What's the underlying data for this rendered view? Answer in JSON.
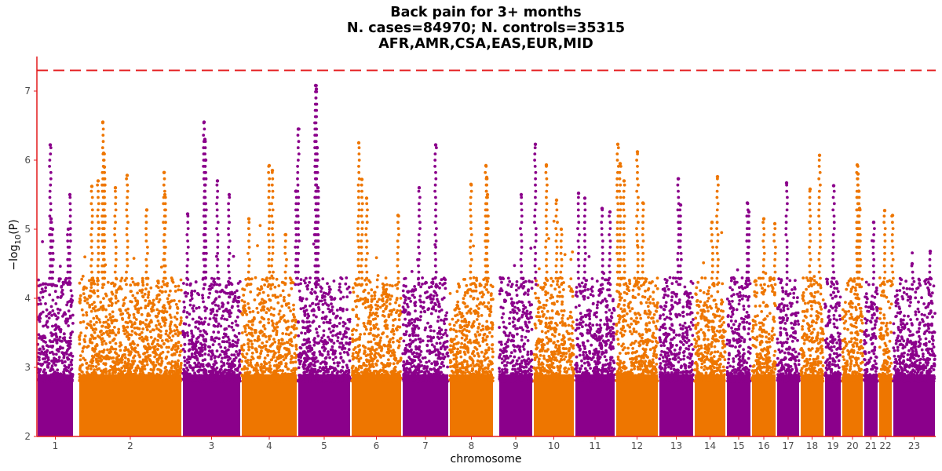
{
  "chart_data": {
    "type": "scatter",
    "subtype": "manhattan",
    "title": [
      "Back pain for 3+ months",
      "N. cases=84970; N. controls=35315",
      "AFR,AMR,CSA,EAS,EUR,MID"
    ],
    "xlabel": "chromosome",
    "ylabel": {
      "prefix": "−log",
      "sub": "10",
      "arg": "(P)"
    },
    "ylim": [
      2,
      7.5
    ],
    "yticks": [
      2,
      3,
      4,
      5,
      6,
      7
    ],
    "threshold": 7.3,
    "colors": {
      "odd": "#8B008B",
      "even": "#EE7600",
      "threshold": "#E41A1C",
      "axis": "#E41A1C"
    },
    "chromosomes": [
      {
        "label": "1",
        "span": [
          0.0,
          47.0
        ],
        "peak": 6.22,
        "top": [
          [
            17,
            6.22
          ],
          [
            18,
            5.15
          ],
          [
            20,
            5.0
          ],
          [
            40,
            5.0
          ],
          [
            42,
            5.5
          ]
        ]
      },
      {
        "label": "2",
        "span": [
          53.0,
          185.0
        ],
        "peak": 6.55,
        "top": [
          [
            70,
            5.62
          ],
          [
            78,
            5.7
          ],
          [
            84,
            6.55
          ],
          [
            85,
            6.1
          ],
          [
            86,
            5.9
          ],
          [
            100,
            5.6
          ],
          [
            115,
            5.78
          ],
          [
            140,
            5.28
          ],
          [
            162,
            5.82
          ],
          [
            163,
            5.5
          ]
        ]
      },
      {
        "label": "3",
        "span": [
          185.0,
          260.0
        ],
        "peak": 6.55,
        "top": [
          [
            192,
            5.22
          ],
          [
            213,
            6.55
          ],
          [
            214,
            6.3
          ],
          [
            215,
            6.0
          ],
          [
            230,
            5.7
          ],
          [
            245,
            5.5
          ]
        ]
      },
      {
        "label": "4",
        "span": [
          260.0,
          332.0
        ],
        "peak": 5.92,
        "top": [
          [
            270,
            5.15
          ],
          [
            296,
            5.92
          ],
          [
            300,
            5.85
          ],
          [
            317,
            4.92
          ]
        ]
      },
      {
        "label": "5",
        "span": [
          332.0,
          400.0
        ],
        "peak": 7.08,
        "top": [
          [
            333,
            6.45
          ],
          [
            330,
            5.55
          ],
          [
            355,
            7.08
          ],
          [
            356,
            7.03
          ],
          [
            357,
            6.18
          ],
          [
            358,
            5.6
          ]
        ]
      },
      {
        "label": "6",
        "span": [
          400.0,
          465.0
        ],
        "peak": 6.25,
        "top": [
          [
            410,
            6.25
          ],
          [
            414,
            5.72
          ],
          [
            420,
            5.45
          ],
          [
            460,
            5.2
          ]
        ]
      },
      {
        "label": "7",
        "span": [
          465.0,
          525.0
        ],
        "peak": 6.22,
        "top": [
          [
            487,
            5.6
          ],
          [
            508,
            6.22
          ]
        ]
      },
      {
        "label": "8",
        "span": [
          525.0,
          582.0
        ],
        "peak": 5.92,
        "top": [
          [
            553,
            5.65
          ],
          [
            572,
            5.92
          ],
          [
            573,
            5.75
          ],
          [
            574,
            5.5
          ]
        ]
      },
      {
        "label": "9",
        "span": [
          588.0,
          632.0
        ],
        "peak": 6.23,
        "top": [
          [
            617,
            5.5
          ],
          [
            635,
            6.23
          ]
        ]
      },
      {
        "label": "10",
        "span": [
          632.0,
          685.0
        ],
        "peak": 5.93,
        "top": [
          [
            649,
            5.93
          ],
          [
            662,
            5.42
          ],
          [
            668,
            5.0
          ]
        ]
      },
      {
        "label": "11",
        "span": [
          685.0,
          737.0
        ],
        "peak": 5.52,
        "top": [
          [
            690,
            5.52
          ],
          [
            698,
            5.45
          ],
          [
            720,
            5.3
          ],
          [
            730,
            5.25
          ]
        ]
      },
      {
        "label": "12",
        "span": [
          737.0,
          792.0
        ],
        "peak": 6.23,
        "top": [
          [
            740,
            6.23
          ],
          [
            743,
            5.95
          ],
          [
            748,
            5.7
          ],
          [
            765,
            6.12
          ],
          [
            772,
            5.38
          ]
        ]
      },
      {
        "label": "13",
        "span": [
          792.0,
          837.0
        ],
        "peak": 5.73,
        "top": [
          [
            817,
            5.73
          ],
          [
            820,
            5.35
          ]
        ]
      },
      {
        "label": "14",
        "span": [
          837.0,
          878.0
        ],
        "peak": 5.76,
        "top": [
          [
            867,
            5.76
          ],
          [
            860,
            5.1
          ]
        ]
      },
      {
        "label": "15",
        "span": [
          878.0,
          910.0
        ],
        "peak": 5.38,
        "top": [
          [
            905,
            5.38
          ],
          [
            907,
            5.25
          ]
        ]
      },
      {
        "label": "16",
        "span": [
          910.0,
          942.0
        ],
        "peak": 5.15,
        "top": [
          [
            926,
            5.15
          ],
          [
            940,
            5.08
          ]
        ]
      },
      {
        "label": "17",
        "span": [
          942.0,
          972.0
        ],
        "peak": 5.67,
        "top": [
          [
            955,
            5.67
          ]
        ]
      },
      {
        "label": "18",
        "span": [
          972.0,
          1003.0
        ],
        "peak": 6.07,
        "top": [
          [
            985,
            5.58
          ],
          [
            997,
            6.07
          ]
        ]
      },
      {
        "label": "19",
        "span": [
          1003.0,
          1025.0
        ],
        "peak": 5.63,
        "top": [
          [
            1015,
            5.63
          ]
        ]
      },
      {
        "label": "20",
        "span": [
          1025.0,
          1053.0
        ],
        "peak": 5.93,
        "top": [
          [
            1045,
            5.93
          ],
          [
            1046,
            5.8
          ],
          [
            1047,
            5.55
          ],
          [
            1048,
            5.3
          ]
        ]
      },
      {
        "label": "21",
        "span": [
          1053.0,
          1072.0
        ],
        "peak": 5.1,
        "top": [
          [
            1066,
            5.1
          ]
        ]
      },
      {
        "label": "22",
        "span": [
          1072.0,
          1090.0
        ],
        "peak": 5.27,
        "top": [
          [
            1080,
            5.27
          ],
          [
            1090,
            5.2
          ]
        ]
      },
      {
        "label": "23",
        "span": [
          1090.0,
          1145.0
        ],
        "peak": 4.68,
        "top": [
          [
            1115,
            4.5
          ],
          [
            1138,
            4.68
          ]
        ]
      }
    ]
  }
}
